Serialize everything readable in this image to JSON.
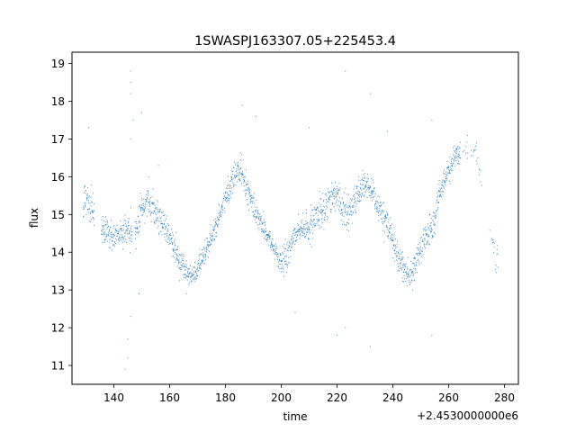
{
  "chart_data": {
    "type": "scatter",
    "title": "1SWASPJ163307.05+225453.4",
    "xlabel": "time",
    "ylabel": "flux",
    "x_offset_label": "+2.4530000000e6",
    "xlim": [
      125,
      285
    ],
    "ylim": [
      10.5,
      19.3
    ],
    "x_ticks": [
      140,
      160,
      180,
      200,
      220,
      240,
      260,
      280
    ],
    "y_ticks": [
      11,
      12,
      13,
      14,
      15,
      16,
      17,
      18,
      19
    ],
    "grid": false,
    "legend": "none",
    "point_color": "#1f77b4",
    "trend_x": [
      129,
      130,
      131,
      132,
      136,
      140,
      143,
      145,
      146,
      148,
      150,
      152,
      154,
      156,
      158,
      160,
      162,
      164,
      166,
      168,
      170,
      172,
      174,
      176,
      178,
      180,
      182,
      184,
      185,
      186,
      188,
      190,
      192,
      194,
      196,
      198,
      200,
      202,
      204,
      206,
      208,
      210,
      212,
      214,
      216,
      218,
      220,
      222,
      224,
      226,
      228,
      230,
      232,
      234,
      236,
      238,
      240,
      242,
      244,
      246,
      248,
      250,
      252,
      254,
      255,
      256,
      258,
      260,
      262,
      264,
      266,
      270,
      272,
      275,
      276,
      278
    ],
    "trend_y": [
      15.2,
      15.5,
      15.3,
      15.1,
      14.6,
      14.4,
      14.5,
      14.6,
      14.4,
      14.6,
      15.1,
      15.4,
      15.2,
      15.0,
      14.7,
      14.4,
      14.0,
      13.7,
      13.5,
      13.4,
      13.5,
      13.8,
      14.2,
      14.6,
      15.0,
      15.4,
      15.8,
      16.1,
      16.2,
      16.1,
      15.6,
      15.2,
      14.9,
      14.6,
      14.3,
      14.0,
      13.7,
      13.9,
      14.3,
      14.6,
      14.6,
      14.6,
      14.8,
      15.1,
      15.3,
      15.5,
      15.5,
      15.2,
      15.1,
      15.3,
      15.6,
      15.8,
      15.6,
      15.3,
      15.0,
      14.7,
      14.3,
      13.9,
      13.6,
      13.3,
      13.6,
      14.1,
      14.5,
      14.6,
      14.7,
      15.4,
      15.8,
      16.2,
      16.5,
      16.7,
      16.8,
      16.7,
      15.8,
      14.4,
      14.0,
      13.8
    ],
    "trend_spread": [
      0.45,
      0.5,
      0.5,
      0.4,
      0.3,
      0.3,
      0.3,
      0.4,
      0.5,
      0.4,
      0.35,
      0.35,
      0.35,
      0.35,
      0.35,
      0.3,
      0.3,
      0.3,
      0.3,
      0.3,
      0.3,
      0.3,
      0.3,
      0.3,
      0.3,
      0.3,
      0.3,
      0.3,
      0.3,
      0.3,
      0.3,
      0.3,
      0.3,
      0.3,
      0.3,
      0.3,
      0.3,
      0.3,
      0.3,
      0.3,
      0.3,
      0.35,
      0.4,
      0.4,
      0.4,
      0.4,
      0.4,
      0.4,
      0.4,
      0.35,
      0.35,
      0.35,
      0.35,
      0.35,
      0.35,
      0.35,
      0.35,
      0.35,
      0.35,
      0.35,
      0.35,
      0.35,
      0.35,
      0.35,
      0.35,
      0.3,
      0.3,
      0.3,
      0.3,
      0.3,
      0.3,
      0.3,
      0.3,
      0.3,
      0.3,
      0.3
    ],
    "gaps": [
      [
        133,
        135.5
      ],
      [
        146.5,
        147.5
      ],
      [
        272.5,
        274.5
      ]
    ],
    "outliers": [
      {
        "x": 146,
        "y": 18.8
      },
      {
        "x": 146,
        "y": 18.5
      },
      {
        "x": 146,
        "y": 18.2
      },
      {
        "x": 147,
        "y": 17.5
      },
      {
        "x": 146,
        "y": 17.0
      },
      {
        "x": 146,
        "y": 12.3
      },
      {
        "x": 145,
        "y": 11.7
      },
      {
        "x": 145,
        "y": 11.2
      },
      {
        "x": 144,
        "y": 10.9
      },
      {
        "x": 150,
        "y": 17.7
      },
      {
        "x": 149,
        "y": 12.9
      },
      {
        "x": 186,
        "y": 17.9
      },
      {
        "x": 191,
        "y": 17.6
      },
      {
        "x": 220,
        "y": 11.8
      },
      {
        "x": 223,
        "y": 12.0
      },
      {
        "x": 223,
        "y": 18.8
      },
      {
        "x": 232,
        "y": 18.2
      },
      {
        "x": 232,
        "y": 11.5
      },
      {
        "x": 254,
        "y": 17.5
      },
      {
        "x": 254,
        "y": 11.8
      },
      {
        "x": 131,
        "y": 17.3
      },
      {
        "x": 166,
        "y": 12.9
      },
      {
        "x": 205,
        "y": 12.4
      },
      {
        "x": 210,
        "y": 17.3
      },
      {
        "x": 238,
        "y": 17.2
      },
      {
        "x": 156,
        "y": 16.3
      }
    ]
  }
}
